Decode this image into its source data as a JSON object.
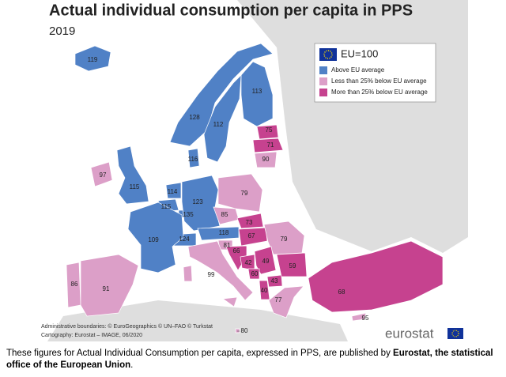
{
  "title": "Actual individual consumption per capita in PPS",
  "subtitle": "2019",
  "legend": {
    "title": "EU=100",
    "items": [
      {
        "label": "Above EU average",
        "color": "#5081c6"
      },
      {
        "label": "Less than 25% below EU average",
        "color": "#dc9fc8"
      },
      {
        "label": "More than 25% below EU average",
        "color": "#c6428f"
      }
    ]
  },
  "regions": [
    {
      "value": 119,
      "color": "#5081c6"
    },
    {
      "value": 113,
      "color": "#5081c6"
    },
    {
      "value": 128,
      "color": "#5081c6"
    },
    {
      "value": 112,
      "color": "#5081c6"
    },
    {
      "value": 116,
      "color": "#5081c6"
    },
    {
      "value": 75,
      "color": "#c6428f"
    },
    {
      "value": 71,
      "color": "#c6428f"
    },
    {
      "value": 90,
      "color": "#dc9fc8"
    },
    {
      "value": 97,
      "color": "#dc9fc8"
    },
    {
      "value": 115,
      "color": "#5081c6"
    },
    {
      "value": 114,
      "color": "#5081c6"
    },
    {
      "value": 115,
      "color": "#5081c6"
    },
    {
      "value": 135,
      "color": "#5081c6"
    },
    {
      "value": 123,
      "color": "#5081c6"
    },
    {
      "value": 79,
      "color": "#dc9fc8"
    },
    {
      "value": 85,
      "color": "#dc9fc8"
    },
    {
      "value": 73,
      "color": "#c6428f"
    },
    {
      "value": 118,
      "color": "#5081c6"
    },
    {
      "value": 67,
      "color": "#c6428f"
    },
    {
      "value": 79,
      "color": "#dc9fc8"
    },
    {
      "value": 124,
      "color": "#5081c6"
    },
    {
      "value": 109,
      "color": "#5081c6"
    },
    {
      "value": 81,
      "color": "#dc9fc8"
    },
    {
      "value": 66,
      "color": "#c6428f"
    },
    {
      "value": 42,
      "color": "#c6428f"
    },
    {
      "value": 49,
      "color": "#c6428f"
    },
    {
      "value": 60,
      "color": "#c6428f"
    },
    {
      "value": 43,
      "color": "#c6428f"
    },
    {
      "value": 40,
      "color": "#c6428f"
    },
    {
      "value": 59,
      "color": "#c6428f"
    },
    {
      "value": 99,
      "color": "#dc9fc8"
    },
    {
      "value": 77,
      "color": "#dc9fc8"
    },
    {
      "value": 68,
      "color": "#c6428f"
    },
    {
      "value": 86,
      "color": "#dc9fc8"
    },
    {
      "value": 91,
      "color": "#dc9fc8"
    },
    {
      "value": 80,
      "color": "#dc9fc8"
    },
    {
      "value": 95,
      "color": "#dc9fc8"
    }
  ],
  "credits": [
    "Administrative boundaries: © EuroGeographics © UN–FAO © Turkstat",
    "Cartography: Eurostat – IMAGE, 06/2020"
  ],
  "logo": "eurostat",
  "caption": {
    "text": "These figures for Actual Individual Consumption per capita, expressed in PPS, are published by ",
    "bold": "Eurostat, the statistical office of the European Union",
    "end": "."
  }
}
